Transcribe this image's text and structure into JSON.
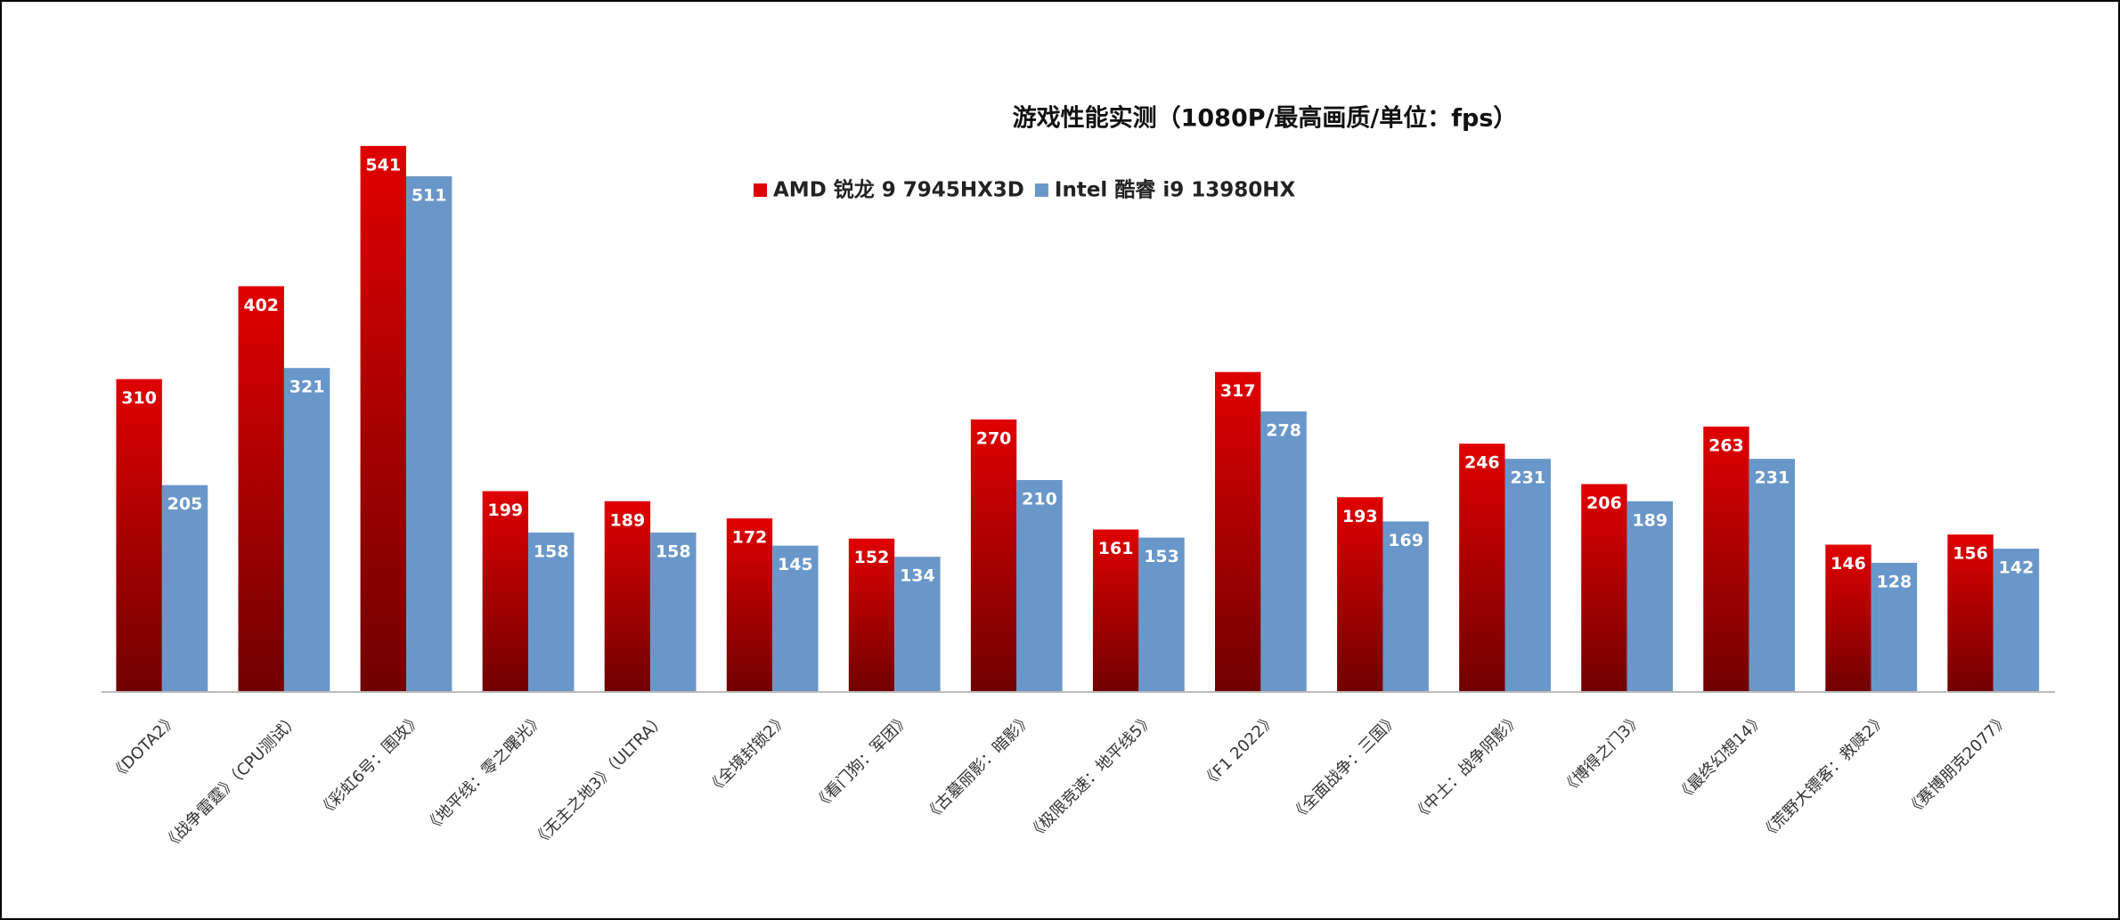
{
  "chart_data": {
    "type": "bar",
    "title": "游戏性能实测（1080P/最高画质/单位：fps）",
    "categories": [
      "《DOTA2》",
      "《战争雷霆》（CPU测试）",
      "《彩虹6号：围攻》",
      "《地平线：零之曙光》",
      "《无主之地3》（ULTRA）",
      "《全境封锁2》",
      "《看门狗：军团》",
      "《古墓丽影：暗影》",
      "《极限竞速：地平线5》",
      "《F1 2022》",
      "《全面战争：三国》",
      "《中土：战争阴影》",
      "《博得之门3》",
      "《最终幻想14》",
      "《荒野大镖客：救赎2》",
      "《赛博朋克2077》"
    ],
    "series": [
      {
        "name": "AMD 锐龙 9 7945HX3D",
        "color": "#e00000",
        "values": [
          310,
          402,
          541,
          199,
          189,
          172,
          152,
          270,
          161,
          317,
          193,
          246,
          206,
          263,
          146,
          156
        ]
      },
      {
        "name": "Intel 酷睿 i9 13980HX",
        "color": "#6a97c9",
        "values": [
          205,
          321,
          511,
          158,
          158,
          145,
          134,
          210,
          153,
          278,
          169,
          231,
          189,
          231,
          128,
          142
        ]
      }
    ],
    "ylim": [
      0,
      600
    ]
  }
}
